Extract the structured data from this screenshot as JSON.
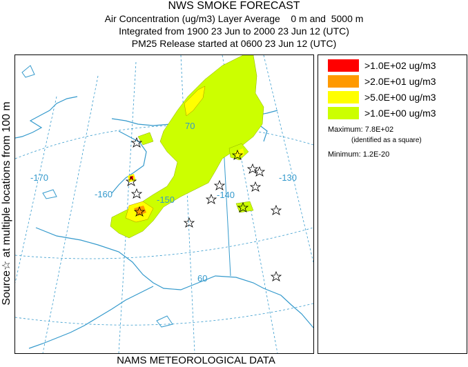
{
  "header": {
    "title": "NWS SMOKE FORECAST",
    "line2": "Air Concentration (ug/m3) Layer Average    0 m and  5000 m",
    "line3": "Integrated from 1900 23 Jun to 2000 23 Jun 12 (UTC)",
    "line4": "PM25 Release started at 0600 23 Jun 12 (UTC)"
  },
  "side_label": "Source☆ at multiple locations from 100 m",
  "bottom_label": "NAMS METEOROLOGICAL DATA",
  "map": {
    "longitude_labels": [
      "-170",
      "-160",
      "-150",
      "-140",
      "-130"
    ],
    "latitude_labels": [
      "70",
      "60"
    ]
  },
  "legend": {
    "entries": [
      {
        "label": ">1.0E+02 ug/m3",
        "color": "#ff0000"
      },
      {
        "label": ">2.0E+01 ug/m3",
        "color": "#ff9900"
      },
      {
        "label": ">5.0E+00 ug/m3",
        "color": "#ffff00"
      },
      {
        "label": ">1.0E+00 ug/m3",
        "color": "#ccff00"
      }
    ],
    "maximum": "Maximum: 7.8E+02",
    "maximum_note": "(identified as a square)",
    "minimum": "Minimum: 1.2E-20"
  },
  "colors": {
    "coastline": "#3399cc",
    "graticule": "#3399cc",
    "plume_low": "#ccff00",
    "plume_mid": "#ffff00",
    "plume_high": "#ff9900",
    "plume_max": "#ff0000"
  }
}
